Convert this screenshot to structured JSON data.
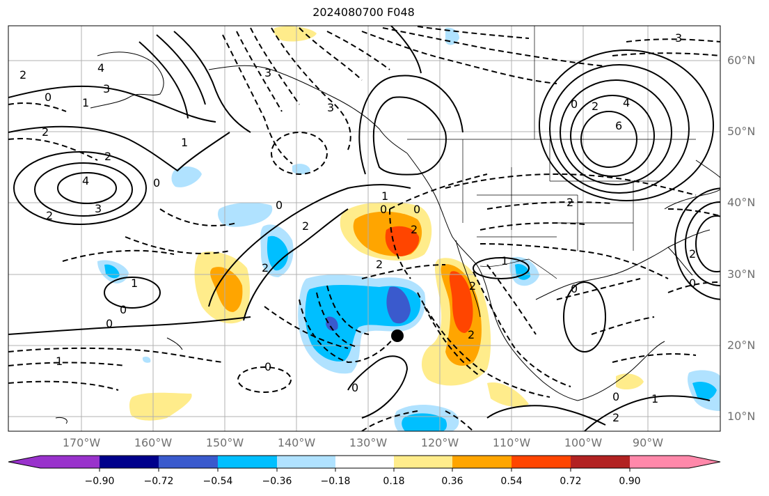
{
  "title": "2024080700 F048",
  "lat_labels": [
    "60°N",
    "50°N",
    "40°N",
    "30°N",
    "20°N",
    "10°N"
  ],
  "lon_labels": [
    "170°W",
    "160°W",
    "150°W",
    "140°W",
    "130°W",
    "120°W",
    "110°W",
    "100°W",
    "90°W"
  ],
  "colorbar": {
    "labels": [
      "−0.90",
      "−0.72",
      "−0.54",
      "−0.36",
      "−0.18",
      "0.18",
      "0.36",
      "0.54",
      "0.72",
      "0.90"
    ],
    "colors": [
      "#9932cc",
      "#00008b",
      "#3a5acd",
      "#00bfff",
      "#b0e2ff",
      "#ffffff",
      "#ffec8b",
      "#ffa500",
      "#ff4500",
      "#b22222",
      "#ff88aa"
    ]
  },
  "contour_labels": [
    "2",
    "4",
    "3",
    "0",
    "2",
    "1",
    "3",
    "2",
    "4",
    "3",
    "2",
    "1",
    "0",
    "3",
    "2",
    "0",
    "1",
    "2",
    "2",
    "0",
    "0",
    "1",
    "0",
    "0",
    "2",
    "2",
    "2",
    "0",
    "1",
    "1",
    "0",
    "2",
    "6",
    "4",
    "2",
    "3",
    "0",
    "0",
    "2",
    "0",
    "2",
    "1",
    "0"
  ],
  "marker": "black-dot"
}
